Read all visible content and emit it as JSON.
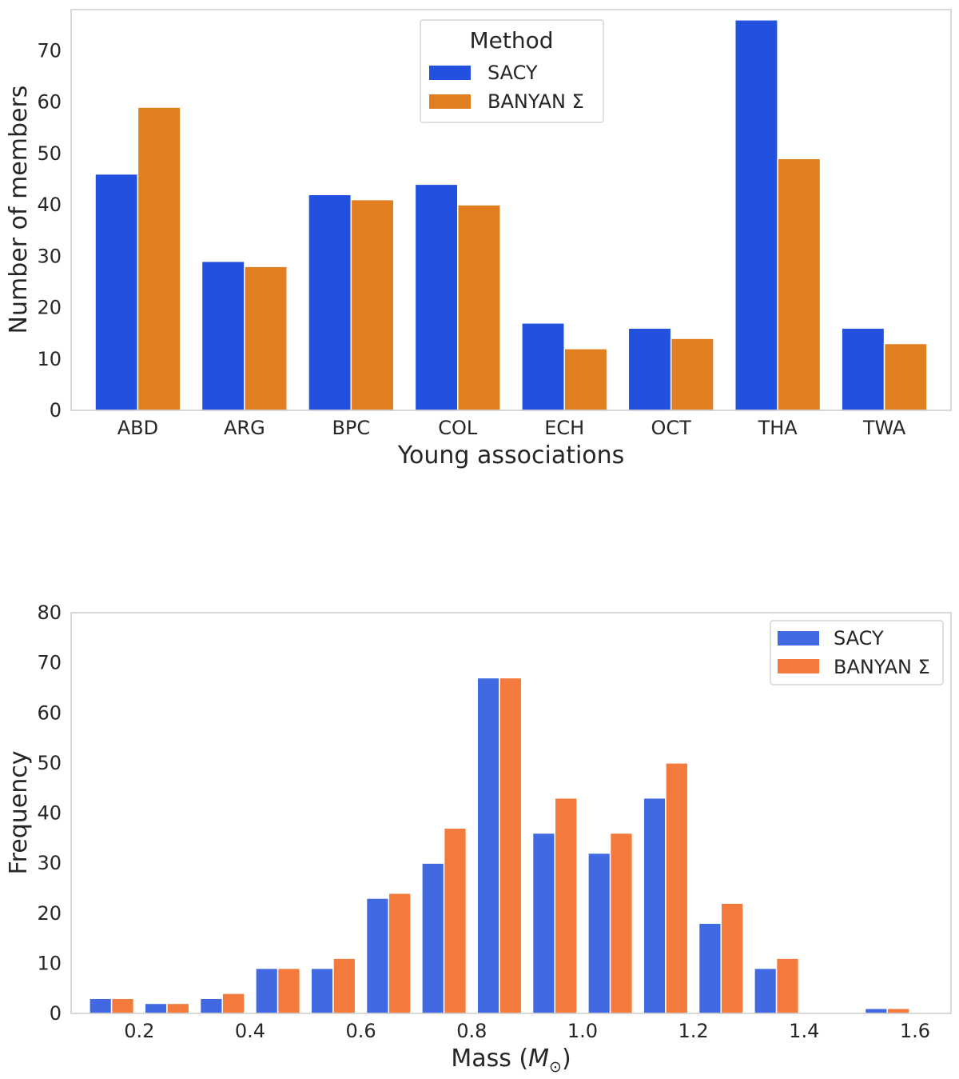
{
  "chart_data": [
    {
      "type": "bar",
      "title": "",
      "xlabel": "Young associations",
      "ylabel": "Number of members",
      "categories": [
        "ABD",
        "ARG",
        "BPC",
        "COL",
        "ECH",
        "OCT",
        "THA",
        "TWA"
      ],
      "series": [
        {
          "name": "SACY",
          "color": "#2251e0",
          "values": [
            46,
            29,
            42,
            44,
            17,
            16,
            76,
            16
          ]
        },
        {
          "name": "BANYAN Σ",
          "color": "#e07e20",
          "values": [
            59,
            28,
            41,
            40,
            12,
            14,
            49,
            13
          ]
        }
      ],
      "ylim": [
        0,
        78
      ],
      "yticks": [
        0,
        10,
        20,
        30,
        40,
        50,
        60,
        70
      ],
      "grid": false,
      "legend": {
        "title": "Method",
        "position": "top-center"
      }
    },
    {
      "type": "bar",
      "title": "",
      "xlabel": "Mass (M_⊙)",
      "xlabel_main": "Mass (",
      "xlabel_symbol": "M",
      "xlabel_subscript": "⊙",
      "xlabel_close": ")",
      "ylabel": "Frequency",
      "bin_centers": [
        0.15,
        0.25,
        0.35,
        0.45,
        0.55,
        0.65,
        0.75,
        0.85,
        0.95,
        1.05,
        1.15,
        1.25,
        1.35,
        1.45,
        1.55
      ],
      "series": [
        {
          "name": "SACY",
          "color": "#4169e1",
          "values": [
            3,
            2,
            3,
            9,
            9,
            23,
            30,
            67,
            36,
            32,
            43,
            18,
            9,
            0,
            1
          ]
        },
        {
          "name": "BANYAN Σ",
          "color": "#f4793c",
          "values": [
            3,
            2,
            4,
            9,
            11,
            24,
            37,
            67,
            43,
            36,
            50,
            22,
            11,
            0,
            1
          ]
        }
      ],
      "xlim": [
        0.077,
        1.665
      ],
      "xticks": [
        0.2,
        0.4,
        0.6,
        0.8,
        1.0,
        1.2,
        1.4,
        1.6
      ],
      "xtick_labels": [
        "0.2",
        "0.4",
        "0.6",
        "0.8",
        "1.0",
        "1.2",
        "1.4",
        "1.6"
      ],
      "ylim": [
        0,
        80
      ],
      "yticks": [
        0,
        10,
        20,
        30,
        40,
        50,
        60,
        70,
        80
      ],
      "grid": false,
      "legend": {
        "title": "",
        "position": "top-right"
      }
    }
  ]
}
